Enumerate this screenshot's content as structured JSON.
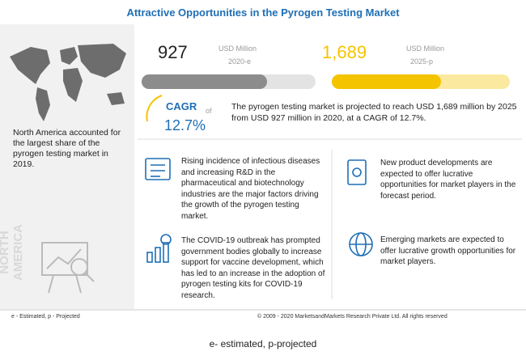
{
  "header": {
    "title": "Attractive Opportunities in the Pyrogen Testing Market"
  },
  "left_panel": {
    "text": "North America accounted for the largest share of the pyrogen testing market in 2019.",
    "region": "NORTH AMERICA"
  },
  "figures": [
    {
      "value": "927",
      "unit": "USD Million",
      "year": "2020-e"
    },
    {
      "value": "1,689",
      "unit": "USD Million",
      "year": "2025-p"
    }
  ],
  "cagr": {
    "label": "CAGR",
    "of": "of",
    "value": "12.7%"
  },
  "summary": "The pyrogen testing market is projected to reach USD 1,689 million by 2025 from USD 927 million in 2020, at a CAGR of 12.7%.",
  "points": [
    "Rising incidence of infectious diseases and increasing R&D in the pharmaceutical and biotechnology industries are the major factors driving the growth of the pyrogen testing market.",
    "New product developments are expected to offer lucrative opportunities for market players in the forecast period.",
    "The COVID-19 outbreak has prompted government bodies globally to increase support for vaccine development, which has led to an increase in the adoption of pyrogen testing kits for COVID-19 research.",
    "Emerging markets are expected to offer lucrative growth opportunities for market players."
  ],
  "footer": {
    "note": "e - Estimated, p - Projected",
    "copyright": "© 2009 - 2020 MarketsandMarkets Research Private Ltd. All rights reserved"
  },
  "caption": "e- estimated, p-projected"
}
